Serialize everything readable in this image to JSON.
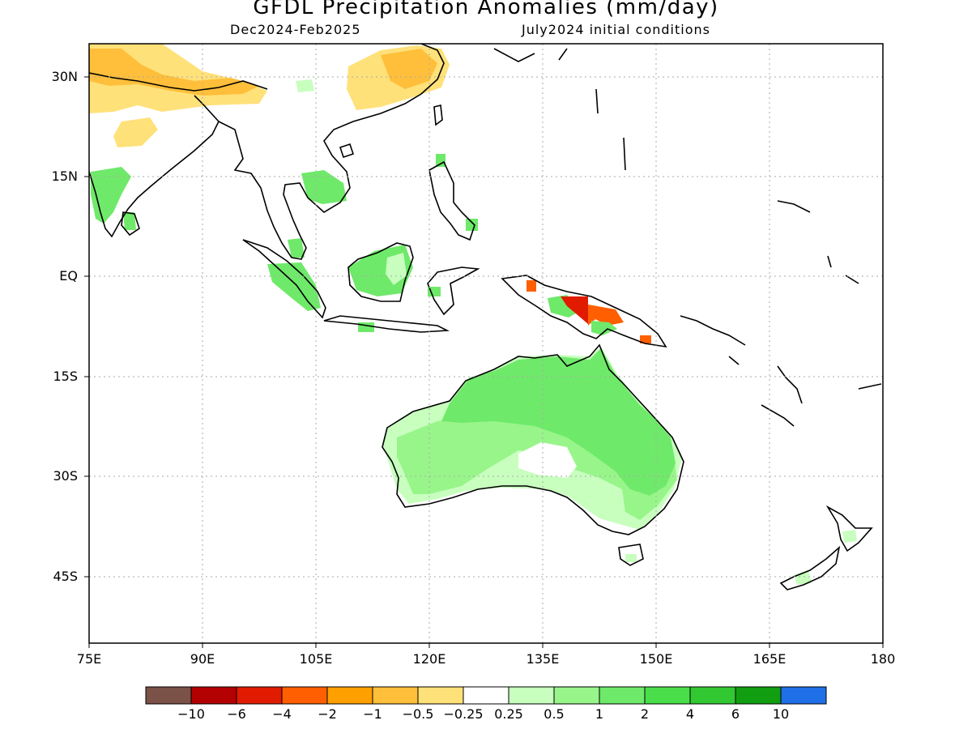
{
  "title": "GFDL Precipitation Anomalies (mm/day)",
  "subtitle_left": "Dec2024-Feb2025",
  "subtitle_right": "July2024 initial conditions",
  "lat_labels": [
    "30N",
    "15N",
    "EQ",
    "15S",
    "30S",
    "45S"
  ],
  "lon_labels": [
    "75E",
    "90E",
    "105E",
    "120E",
    "135E",
    "150E",
    "165E",
    "180"
  ],
  "colorbar": {
    "colors": [
      "#7b5247",
      "#b30000",
      "#e01b00",
      "#ff5f00",
      "#ffa000",
      "#ffbf3a",
      "#ffe17a",
      "#ffffff",
      "#c8ffbf",
      "#98f58a",
      "#6fe96a",
      "#4ade4a",
      "#32c832",
      "#119e11",
      "#1f6fe8"
    ],
    "labels": [
      "−10",
      "−6",
      "−4",
      "−2",
      "−1",
      "−0.5",
      "−0.25",
      "0.25",
      "0.5",
      "1",
      "2",
      "4",
      "6",
      "10"
    ]
  },
  "map_extent": {
    "lon": [
      75,
      180
    ],
    "lat": [
      -50,
      35
    ]
  },
  "anomaly_colors": {
    "dry_light": "#ffe17a",
    "dry_medium": "#ffbf3a",
    "dry_strong": "#ff5f00",
    "dry_very_strong": "#e01b00",
    "wet_light": "#c8ffbf",
    "wet_medium": "#98f58a",
    "wet_strong": "#6fe96a",
    "wet_very_strong": "#4ade4a"
  }
}
